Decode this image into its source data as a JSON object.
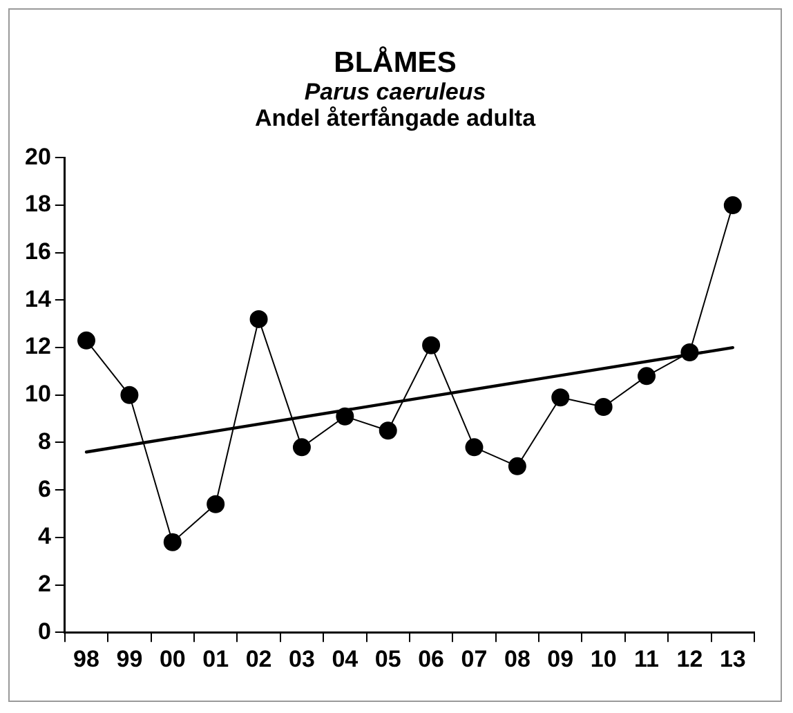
{
  "chart_data": {
    "type": "line",
    "title": "BLÅMES",
    "subtitle": "Parus caeruleus",
    "annotations": [
      "Andel återfångade adulta"
    ],
    "categories": [
      "98",
      "99",
      "00",
      "01",
      "02",
      "03",
      "04",
      "05",
      "06",
      "07",
      "08",
      "09",
      "10",
      "11",
      "12",
      "13"
    ],
    "series": [
      {
        "color": "#000000",
        "marker": "circle",
        "values": [
          12.3,
          10.0,
          3.8,
          5.4,
          13.2,
          7.8,
          9.1,
          8.5,
          12.1,
          7.8,
          7.0,
          9.9,
          9.5,
          10.8,
          11.8,
          18.0
        ]
      },
      {
        "type": "line",
        "color": "#000000",
        "marker": "none",
        "x": [
          "98",
          "13"
        ],
        "values": [
          7.6,
          12.0
        ]
      }
    ],
    "ylim": [
      0,
      20
    ],
    "yticks": [
      0,
      2,
      4,
      6,
      8,
      10,
      12,
      14,
      16,
      18,
      20
    ],
    "grid": false,
    "legend": false
  }
}
